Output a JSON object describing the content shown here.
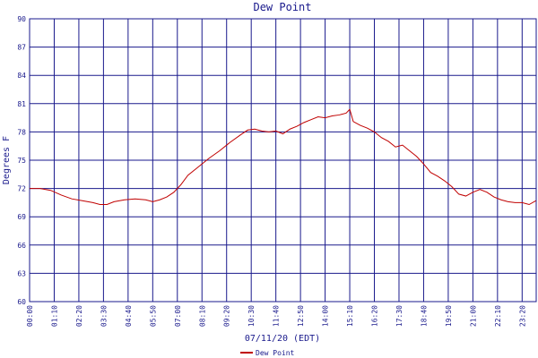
{
  "chart_data": {
    "type": "line",
    "title": "Dew Point",
    "xlabel": "07/11/20 (EDT)",
    "ylabel": "Degrees F",
    "ylim": [
      60,
      90
    ],
    "yticks": [
      60,
      63,
      66,
      69,
      72,
      75,
      78,
      81,
      84,
      87,
      90
    ],
    "xticks": [
      "00:00",
      "01:10",
      "02:20",
      "03:30",
      "04:40",
      "05:50",
      "07:00",
      "08:10",
      "09:20",
      "10:30",
      "11:40",
      "12:50",
      "14:00",
      "15:10",
      "16:20",
      "17:30",
      "18:40",
      "19:50",
      "21:00",
      "22:10",
      "23:20"
    ],
    "xlim_minutes": [
      0,
      1440
    ],
    "grid": true,
    "legend_position": "bottom",
    "series": [
      {
        "name": "Dew Point",
        "color": "#c00000",
        "x": [
          "00:00",
          "00:30",
          "01:00",
          "01:30",
          "02:00",
          "02:30",
          "03:00",
          "03:20",
          "03:40",
          "04:00",
          "04:30",
          "05:00",
          "05:30",
          "05:50",
          "06:10",
          "06:30",
          "06:50",
          "07:10",
          "07:30",
          "08:00",
          "08:30",
          "09:00",
          "09:30",
          "10:00",
          "10:20",
          "10:40",
          "11:00",
          "11:20",
          "11:40",
          "12:00",
          "12:20",
          "12:40",
          "13:00",
          "13:20",
          "13:40",
          "14:00",
          "14:20",
          "14:40",
          "15:00",
          "15:10",
          "15:20",
          "15:40",
          "16:00",
          "16:20",
          "16:40",
          "17:00",
          "17:20",
          "17:40",
          "18:00",
          "18:20",
          "18:40",
          "19:00",
          "19:20",
          "19:40",
          "20:00",
          "20:20",
          "20:40",
          "21:00",
          "21:20",
          "21:40",
          "22:00",
          "22:20",
          "22:40",
          "23:00",
          "23:20",
          "23:40",
          "23:59"
        ],
        "values": [
          72.0,
          72.0,
          71.8,
          71.3,
          70.9,
          70.7,
          70.5,
          70.3,
          70.3,
          70.6,
          70.8,
          70.9,
          70.8,
          70.6,
          70.8,
          71.1,
          71.6,
          72.4,
          73.4,
          74.3,
          75.2,
          76.0,
          76.9,
          77.7,
          78.2,
          78.3,
          78.1,
          78.0,
          78.1,
          77.8,
          78.3,
          78.6,
          79.0,
          79.3,
          79.6,
          79.5,
          79.7,
          79.8,
          80.0,
          80.4,
          79.1,
          78.7,
          78.4,
          78.0,
          77.4,
          77.0,
          76.4,
          76.6,
          76.0,
          75.4,
          74.6,
          73.7,
          73.3,
          72.8,
          72.2,
          71.4,
          71.2,
          71.6,
          71.9,
          71.6,
          71.1,
          70.8,
          70.6,
          70.5,
          70.5,
          70.3,
          70.7
        ]
      }
    ]
  }
}
